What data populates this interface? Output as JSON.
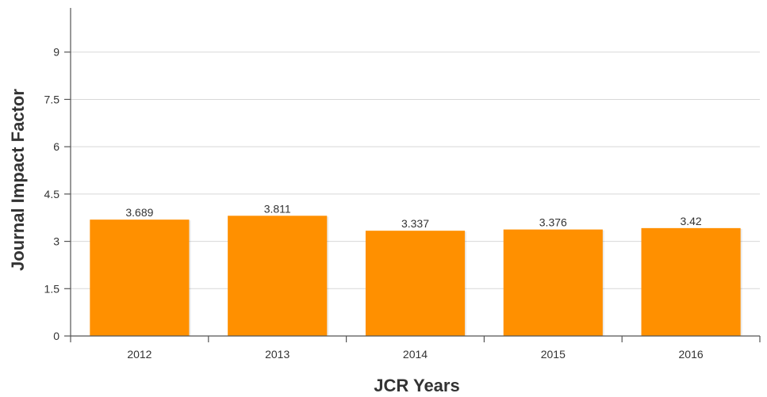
{
  "chart_data": {
    "type": "bar",
    "categories": [
      "2012",
      "2013",
      "2014",
      "2015",
      "2016"
    ],
    "values": [
      3.689,
      3.811,
      3.337,
      3.376,
      3.42
    ],
    "data_labels": [
      "3.689",
      "3.811",
      "3.337",
      "3.376",
      "3.42"
    ],
    "xlabel": "JCR Years",
    "ylabel": "Journal Impact Factor",
    "ylim": [
      0,
      10.4
    ],
    "yticks": [
      0,
      1.5,
      3,
      4.5,
      6,
      7.5,
      9
    ],
    "ytick_labels": [
      "0",
      "1.5",
      "3",
      "4.5",
      "6",
      "7.5",
      "9"
    ],
    "grid": true,
    "bar_color": "#ff9000"
  }
}
